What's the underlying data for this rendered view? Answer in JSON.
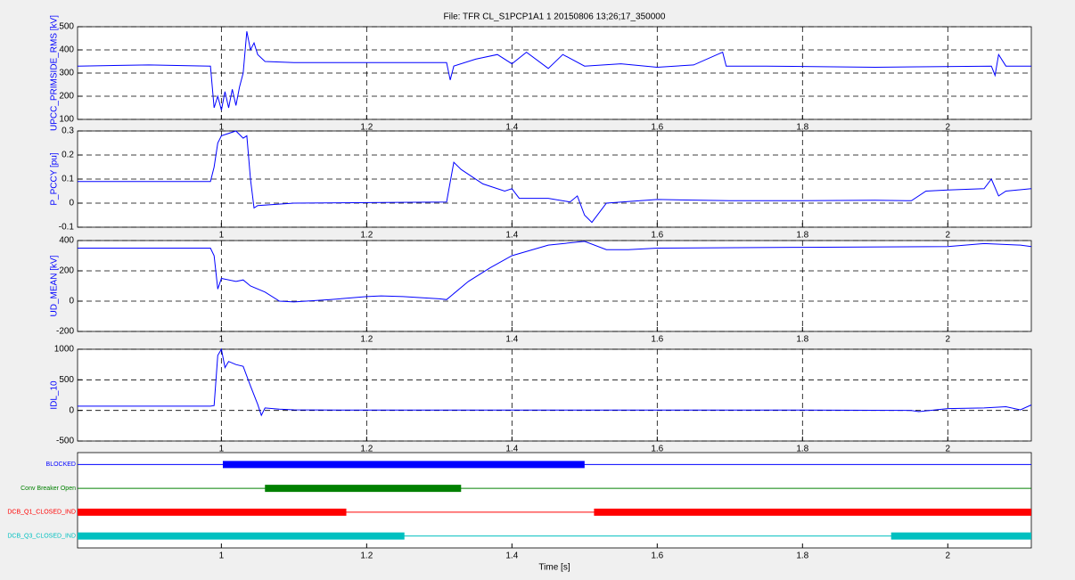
{
  "chart_data": [
    {
      "type": "line",
      "title": "File: TFR CL_S1PCP1A1 1 20150806 13;26;17_350000",
      "ylabel": "UPCC_PRIMSIDE_RMS [kV]",
      "color": "#0000ff",
      "x": [
        0.802,
        0.9,
        0.985,
        0.99,
        0.995,
        1.0,
        1.005,
        1.01,
        1.015,
        1.02,
        1.025,
        1.03,
        1.035,
        1.04,
        1.045,
        1.05,
        1.06,
        1.1,
        1.2,
        1.31,
        1.315,
        1.32,
        1.35,
        1.38,
        1.4,
        1.42,
        1.45,
        1.47,
        1.5,
        1.55,
        1.6,
        1.65,
        1.69,
        1.695,
        1.75,
        1.9,
        2.06,
        2.065,
        2.07,
        2.08,
        2.115
      ],
      "values": [
        330,
        335,
        330,
        150,
        200,
        140,
        220,
        150,
        230,
        160,
        240,
        300,
        480,
        400,
        430,
        380,
        350,
        345,
        345,
        345,
        270,
        330,
        360,
        380,
        340,
        390,
        320,
        380,
        330,
        340,
        325,
        335,
        390,
        330,
        330,
        325,
        330,
        290,
        380,
        330,
        330
      ],
      "xlim": [
        0.802,
        2.115
      ],
      "xticks": [
        1,
        1.2,
        1.4,
        1.6,
        1.8,
        2
      ],
      "ylim": [
        100,
        500
      ],
      "yticks": [
        100,
        200,
        300,
        400,
        500
      ],
      "grid": true
    },
    {
      "type": "line",
      "ylabel": "P_PCCY [pu]",
      "color": "#0000ff",
      "x": [
        0.802,
        0.985,
        0.99,
        0.995,
        1.0,
        1.02,
        1.03,
        1.035,
        1.04,
        1.045,
        1.05,
        1.1,
        1.31,
        1.32,
        1.33,
        1.36,
        1.39,
        1.4,
        1.41,
        1.45,
        1.48,
        1.49,
        1.5,
        1.51,
        1.53,
        1.6,
        1.7,
        1.8,
        1.9,
        1.95,
        1.97,
        2.0,
        2.05,
        2.06,
        2.07,
        2.08,
        2.115
      ],
      "values": [
        0.09,
        0.09,
        0.15,
        0.25,
        0.28,
        0.3,
        0.27,
        0.28,
        0.1,
        -0.02,
        -0.01,
        0,
        0.005,
        0.17,
        0.14,
        0.08,
        0.05,
        0.06,
        0.02,
        0.02,
        0.005,
        0.03,
        -0.05,
        -0.08,
        0,
        0.015,
        0.01,
        0.01,
        0.012,
        0.01,
        0.05,
        0.055,
        0.06,
        0.1,
        0.03,
        0.05,
        0.06
      ],
      "xlim": [
        0.802,
        2.115
      ],
      "xticks": [
        1,
        1.2,
        1.4,
        1.6,
        1.8,
        2
      ],
      "ylim": [
        -0.1,
        0.3
      ],
      "yticks": [
        -0.1,
        0,
        0.1,
        0.2,
        0.3
      ],
      "grid": true
    },
    {
      "type": "line",
      "ylabel": "UD_MEAN [kV]",
      "color": "#0000ff",
      "x": [
        0.802,
        0.985,
        0.99,
        0.995,
        1.0,
        1.02,
        1.03,
        1.04,
        1.06,
        1.08,
        1.1,
        1.15,
        1.2,
        1.22,
        1.25,
        1.3,
        1.31,
        1.34,
        1.37,
        1.4,
        1.45,
        1.5,
        1.53,
        1.56,
        1.6,
        1.8,
        2.0,
        2.05,
        2.1,
        2.115
      ],
      "values": [
        350,
        350,
        300,
        80,
        150,
        130,
        140,
        100,
        60,
        0,
        -5,
        10,
        30,
        35,
        30,
        15,
        10,
        130,
        220,
        300,
        370,
        395,
        340,
        340,
        350,
        355,
        360,
        380,
        370,
        360
      ],
      "xlim": [
        0.802,
        2.115
      ],
      "xticks": [
        1,
        1.2,
        1.4,
        1.6,
        1.8,
        2
      ],
      "ylim": [
        -200,
        400
      ],
      "yticks": [
        -200,
        0,
        200,
        400
      ],
      "grid": true
    },
    {
      "type": "line",
      "ylabel": "IDL_10",
      "color": "#0000ff",
      "x": [
        0.802,
        0.985,
        0.99,
        0.995,
        1.0,
        1.005,
        1.01,
        1.02,
        1.03,
        1.04,
        1.05,
        1.055,
        1.06,
        1.08,
        1.1,
        1.2,
        1.5,
        1.8,
        1.95,
        1.96,
        2.0,
        2.05,
        2.08,
        2.1,
        2.115
      ],
      "values": [
        70,
        70,
        80,
        900,
        1000,
        700,
        800,
        750,
        720,
        400,
        100,
        -80,
        40,
        20,
        10,
        5,
        5,
        5,
        0,
        -20,
        30,
        40,
        60,
        10,
        90
      ],
      "xlim": [
        0.802,
        2.115
      ],
      "xticks": [
        1,
        1.2,
        1.4,
        1.6,
        1.8,
        2
      ],
      "ylim": [
        -500,
        1000
      ],
      "yticks": [
        -500,
        0,
        500,
        1000
      ],
      "grid": true
    },
    {
      "type": "timeline",
      "xlabel": "Time [s]",
      "xlim": [
        0.802,
        2.115
      ],
      "xticks": [
        1,
        1.2,
        1.4,
        1.6,
        1.8,
        2
      ],
      "grid": false,
      "series": [
        {
          "name": "BLOCKED",
          "color": "#0000ff",
          "intervals": [
            [
              1.002,
              1.5
            ]
          ]
        },
        {
          "name": "Conv Breaker Open",
          "color": "#008000",
          "intervals": [
            [
              1.06,
              1.33
            ]
          ]
        },
        {
          "name": "DCB_Q1_CLOSED_IND",
          "color": "#ff0000",
          "intervals": [
            [
              0.802,
              1.172
            ],
            [
              1.513,
              2.115
            ]
          ]
        },
        {
          "name": "DCB_Q3_CLOSED_IND",
          "color": "#00c0c0",
          "intervals": [
            [
              0.802,
              1.252
            ],
            [
              1.922,
              2.115
            ]
          ]
        }
      ]
    }
  ]
}
